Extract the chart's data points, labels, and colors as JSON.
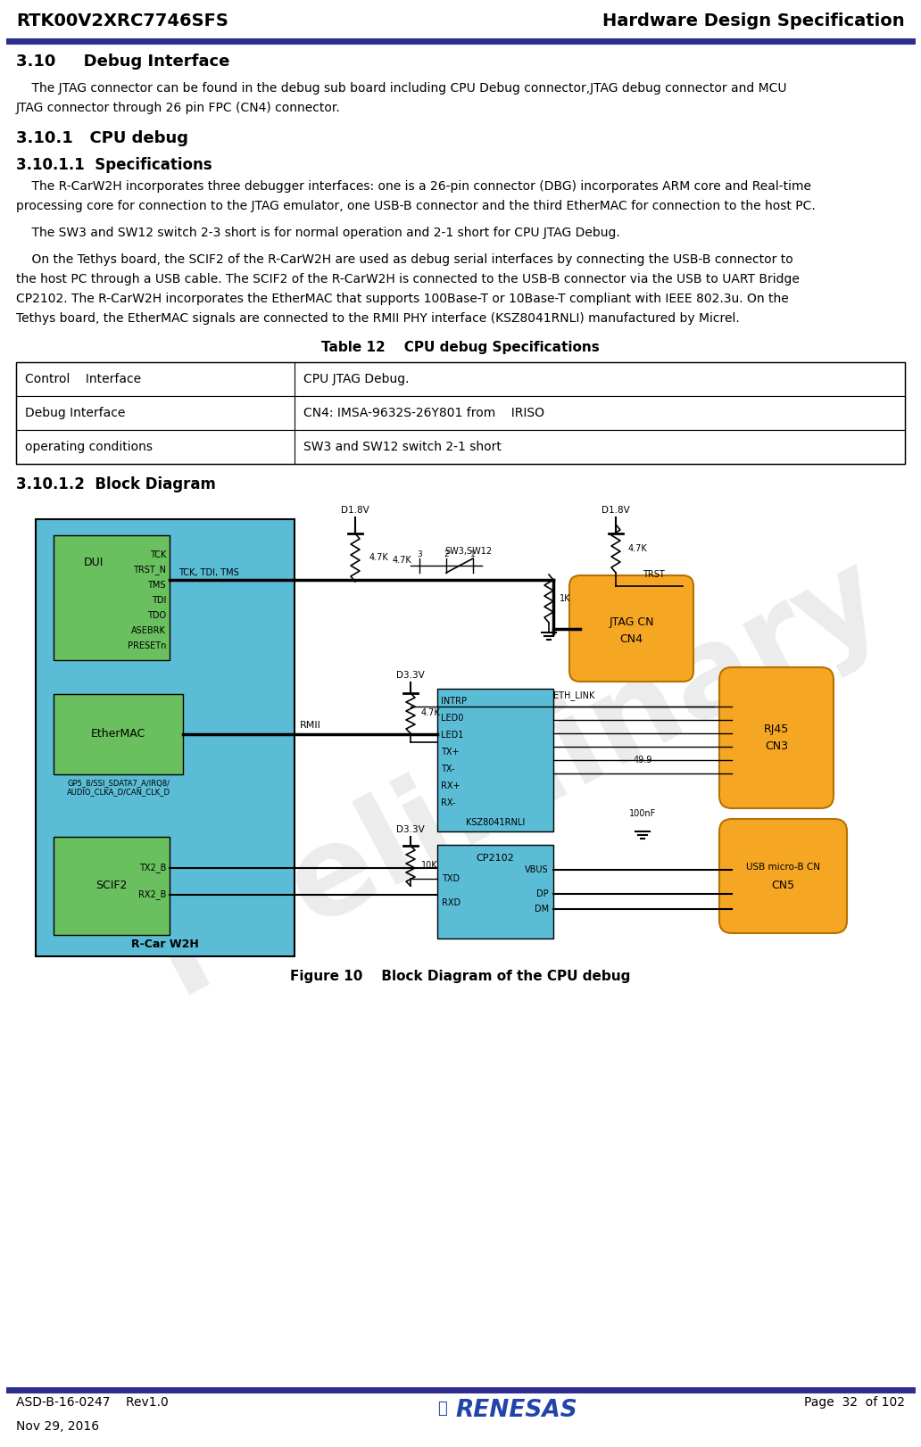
{
  "header_left": "RTK00V2XRC7746SFS",
  "header_right": "Hardware Design Specification",
  "header_line_color": "#2d2d8e",
  "footer_left1": "ASD-B-16-0247    Rev1.0",
  "footer_left2": "Nov 29, 2016",
  "footer_right": "Page  32  of 102",
  "footer_line_color": "#2d2d8e",
  "section_310": "3.10     Debug Interface",
  "para_310_line1": "    The JTAG connector can be found in the debug sub board including CPU Debug connector,JTAG debug connector and MCU",
  "para_310_line2": "JTAG connector through 26 pin FPC (CN4) connector.",
  "section_3101": "3.10.1   CPU debug",
  "section_30101": "3.10.1.1  Specifications",
  "para_spec1_line1": "    The R-CarW2H incorporates three debugger interfaces: one is a 26-pin connector (DBG) incorporates ARM core and Real-time",
  "para_spec1_line2": "processing core for connection to the JTAG emulator, one USB-B connector and the third EtherMAC for connection to the host PC.",
  "para_spec2": "    The SW3 and SW12 switch 2-3 short is for normal operation and 2-1 short for CPU JTAG Debug.",
  "para_spec3_line1": "    On the Tethys board, the SCIF2 of the R-CarW2H are used as debug serial interfaces by connecting the USB-B connector to",
  "para_spec3_line2": "the host PC through a USB cable. The SCIF2 of the R-CarW2H is connected to the USB-B connector via the USB to UART Bridge",
  "para_spec3_line3": "CP2102. The R-CarW2H incorporates the EtherMAC that supports 100Base-T or 10Base-T compliant with IEEE 802.3u. On the",
  "para_spec3_line4": "Tethys board, the EtherMAC signals are connected to the RMII PHY interface (KSZ8041RNLI) manufactured by Micrel.",
  "table_title": "Table 12    CPU debug Specifications",
  "table_rows": [
    [
      "Control    Interface",
      "CPU JTAG Debug."
    ],
    [
      "Debug Interface",
      "CN4: IMSA-9632S-26Y801 from    IRISO"
    ],
    [
      "operating conditions",
      "SW3 and SW12 switch 2-1 short"
    ]
  ],
  "section_30102": "3.10.1.2  Block Diagram",
  "figure_caption": "Figure 10    Block Diagram of the CPU debug",
  "watermark_text": "Preliminary",
  "bg_color": "#ffffff",
  "text_color": "#000000",
  "rcar_color": "#5bbcd6",
  "dui_color": "#6abf5e",
  "eth_color": "#6abf5e",
  "scif_color": "#6abf5e",
  "ksz_color": "#5bbcd6",
  "cp_color": "#5bbcd6",
  "jtag_color": "#f5a623",
  "rj45_color": "#f5a623",
  "usb_color": "#f5a623",
  "table_border_color": "#000000"
}
